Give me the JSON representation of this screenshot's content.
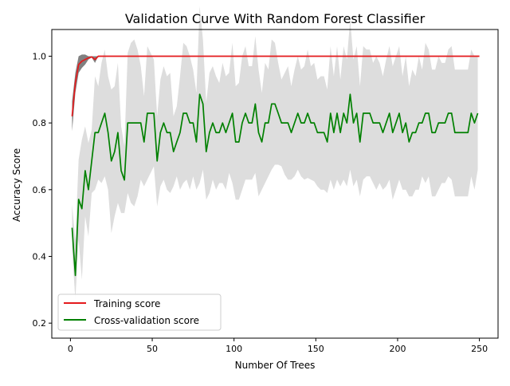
{
  "chart_data": {
    "type": "line",
    "title": "Validation Curve With Random Forest Classifier",
    "xlabel": "Number Of Trees",
    "ylabel": "Accuracy Score",
    "xlim": [
      -11.4,
      261.4
    ],
    "ylim": [
      0.155,
      1.08
    ],
    "xticks": [
      0,
      50,
      100,
      150,
      200,
      250
    ],
    "yticks": [
      0.2,
      0.4,
      0.6,
      0.8,
      1.0
    ],
    "xtick_labels": [
      "0",
      "50",
      "100",
      "150",
      "200",
      "250"
    ],
    "ytick_labels": [
      "0.2",
      "0.4",
      "0.6",
      "0.8",
      "1.0"
    ],
    "grid": false,
    "legend_position": "lower-left",
    "colors": {
      "train": "#e41a1c",
      "test": "#008000",
      "train_band": "#808080",
      "test_band": "#dddddd"
    },
    "series": [
      {
        "name": "Training score",
        "x": [
          1,
          3,
          5,
          7,
          9,
          11,
          13,
          15,
          17,
          250
        ],
        "y": [
          0.82,
          0.92,
          0.975,
          0.985,
          0.99,
          0.995,
          0.998,
          0.99,
          1.0,
          1.0
        ],
        "band_lower": [
          0.775,
          0.89,
          0.95,
          0.965,
          0.975,
          0.99,
          0.996,
          0.98,
          1.0,
          1.0
        ],
        "band_upper": [
          0.865,
          0.95,
          1.0,
          1.005,
          1.005,
          1.0,
          1.0,
          1.0,
          1.0,
          1.0
        ]
      },
      {
        "name": "Cross-validation score",
        "x": [
          1,
          3,
          5,
          7,
          9,
          11,
          13,
          15,
          17,
          19,
          21,
          23,
          25,
          27,
          29,
          31,
          33,
          35,
          37,
          39,
          41,
          43,
          45,
          47,
          49,
          51,
          53,
          55,
          57,
          59,
          61,
          63,
          65,
          67,
          69,
          71,
          73,
          75,
          77,
          79,
          81,
          83,
          85,
          87,
          89,
          91,
          93,
          95,
          97,
          99,
          101,
          103,
          105,
          107,
          109,
          111,
          113,
          115,
          117,
          119,
          121,
          123,
          125,
          127,
          129,
          131,
          133,
          135,
          137,
          139,
          141,
          143,
          145,
          147,
          149,
          151,
          153,
          155,
          157,
          159,
          161,
          163,
          165,
          167,
          169,
          171,
          173,
          175,
          177,
          179,
          181,
          183,
          185,
          187,
          189,
          191,
          193,
          195,
          197,
          199,
          201,
          203,
          205,
          207,
          209,
          211,
          213,
          215,
          217,
          219,
          221,
          223,
          225,
          227,
          229,
          231,
          233,
          235,
          237,
          239,
          241,
          243,
          245,
          247,
          249
        ],
        "y": [
          0.486,
          0.343,
          0.571,
          0.543,
          0.657,
          0.6,
          0.686,
          0.771,
          0.771,
          0.8,
          0.829,
          0.771,
          0.686,
          0.714,
          0.771,
          0.657,
          0.629,
          0.8,
          0.8,
          0.8,
          0.8,
          0.8,
          0.743,
          0.829,
          0.829,
          0.829,
          0.686,
          0.771,
          0.8,
          0.771,
          0.771,
          0.714,
          0.743,
          0.771,
          0.829,
          0.829,
          0.8,
          0.8,
          0.743,
          0.886,
          0.857,
          0.714,
          0.771,
          0.8,
          0.771,
          0.771,
          0.8,
          0.771,
          0.8,
          0.829,
          0.743,
          0.743,
          0.8,
          0.829,
          0.8,
          0.8,
          0.857,
          0.771,
          0.743,
          0.8,
          0.8,
          0.857,
          0.857,
          0.829,
          0.8,
          0.8,
          0.8,
          0.771,
          0.8,
          0.829,
          0.8,
          0.8,
          0.829,
          0.8,
          0.8,
          0.771,
          0.771,
          0.771,
          0.743,
          0.829,
          0.771,
          0.829,
          0.771,
          0.829,
          0.8,
          0.886,
          0.8,
          0.829,
          0.743,
          0.829,
          0.829,
          0.829,
          0.8,
          0.8,
          0.8,
          0.771,
          0.8,
          0.829,
          0.771,
          0.8,
          0.829,
          0.771,
          0.8,
          0.743,
          0.771,
          0.771,
          0.8,
          0.8,
          0.829,
          0.829,
          0.771,
          0.771,
          0.8,
          0.8,
          0.8,
          0.829,
          0.829,
          0.771,
          0.771,
          0.771,
          0.771,
          0.771,
          0.829,
          0.8,
          0.829
        ],
        "band_lower": [
          0.42,
          0.27,
          0.45,
          0.33,
          0.52,
          0.46,
          0.59,
          0.6,
          0.63,
          0.62,
          0.64,
          0.6,
          0.47,
          0.52,
          0.56,
          0.53,
          0.53,
          0.59,
          0.56,
          0.55,
          0.58,
          0.63,
          0.61,
          0.63,
          0.65,
          0.67,
          0.55,
          0.61,
          0.63,
          0.6,
          0.59,
          0.61,
          0.64,
          0.6,
          0.62,
          0.63,
          0.6,
          0.64,
          0.6,
          0.62,
          0.66,
          0.57,
          0.59,
          0.63,
          0.6,
          0.62,
          0.62,
          0.6,
          0.65,
          0.62,
          0.57,
          0.57,
          0.6,
          0.63,
          0.63,
          0.63,
          0.65,
          0.58,
          0.6,
          0.62,
          0.64,
          0.66,
          0.675,
          0.675,
          0.67,
          0.645,
          0.63,
          0.63,
          0.64,
          0.66,
          0.64,
          0.63,
          0.635,
          0.63,
          0.625,
          0.61,
          0.6,
          0.6,
          0.59,
          0.63,
          0.6,
          0.63,
          0.61,
          0.63,
          0.61,
          0.66,
          0.61,
          0.63,
          0.58,
          0.63,
          0.64,
          0.64,
          0.62,
          0.6,
          0.62,
          0.6,
          0.61,
          0.63,
          0.57,
          0.6,
          0.63,
          0.6,
          0.6,
          0.58,
          0.58,
          0.6,
          0.6,
          0.64,
          0.62,
          0.64,
          0.58,
          0.58,
          0.6,
          0.62,
          0.62,
          0.64,
          0.63,
          0.58,
          0.58,
          0.58,
          0.58,
          0.58,
          0.64,
          0.6,
          0.66
        ],
        "band_upper": [
          0.555,
          0.45,
          0.69,
          0.75,
          0.79,
          0.74,
          0.78,
          0.94,
          0.91,
          0.98,
          1.02,
          0.94,
          0.9,
          0.91,
          0.98,
          0.79,
          0.73,
          1.01,
          1.04,
          1.05,
          1.02,
          0.97,
          0.88,
          1.03,
          1.01,
          0.99,
          0.82,
          0.93,
          0.97,
          0.94,
          0.95,
          0.82,
          0.85,
          0.94,
          1.04,
          1.03,
          1.0,
          0.96,
          0.89,
          1.15,
          1.05,
          0.86,
          0.95,
          0.97,
          0.94,
          0.92,
          0.98,
          0.94,
          0.95,
          1.04,
          0.91,
          0.92,
          1.0,
          1.03,
          0.97,
          0.97,
          1.06,
          0.96,
          0.89,
          0.98,
          0.96,
          1.05,
          1.04,
          0.98,
          0.93,
          0.95,
          0.97,
          0.91,
          0.96,
          1.0,
          0.96,
          0.97,
          1.02,
          0.97,
          0.98,
          0.93,
          0.94,
          0.94,
          0.9,
          1.03,
          0.94,
          1.03,
          0.93,
          1.03,
          0.99,
          1.11,
          0.99,
          1.03,
          0.91,
          1.03,
          1.02,
          1.02,
          0.98,
          1.0,
          0.98,
          0.94,
          0.99,
          1.03,
          0.97,
          1.0,
          1.03,
          0.94,
          1.0,
          0.91,
          0.96,
          0.94,
          1.0,
          0.96,
          1.04,
          1.02,
          0.96,
          0.96,
          1.0,
          0.98,
          0.98,
          1.02,
          1.03,
          0.96,
          0.96,
          0.96,
          0.96,
          0.96,
          1.02,
          1.0,
          1.0
        ]
      }
    ]
  }
}
